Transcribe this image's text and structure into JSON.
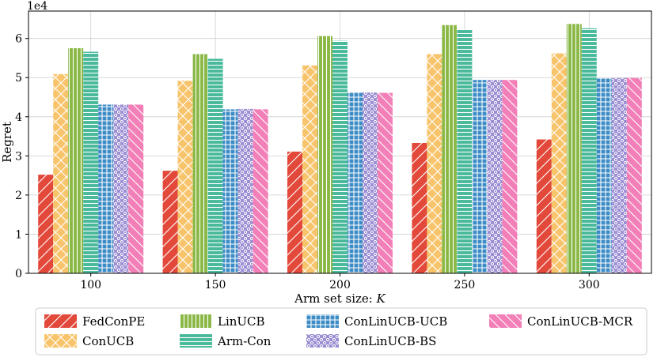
{
  "chart_data": {
    "type": "bar",
    "title": "",
    "xlabel": "Arm set size: ",
    "xlabel_var": "K",
    "ylabel": "Regret",
    "y_exponent_label": "1e4",
    "ylim": [
      0,
      6.7
    ],
    "yticks": [
      0,
      1,
      2,
      3,
      4,
      5,
      6
    ],
    "ytick_labels": [
      "0",
      "1",
      "2",
      "3",
      "4",
      "5",
      "6"
    ],
    "grid": true,
    "legend_position": "bottom",
    "categories": [
      "100",
      "150",
      "200",
      "250",
      "300"
    ],
    "series": [
      {
        "name": "FedConPE",
        "values": [
          2.52,
          2.62,
          3.11,
          3.33,
          3.42
        ],
        "color": "#e2493b",
        "pattern": "slash"
      },
      {
        "name": "ConUCB",
        "values": [
          5.09,
          4.92,
          5.31,
          5.6,
          5.62
        ],
        "color": "#f8c46b",
        "pattern": "cross"
      },
      {
        "name": "LinUCB",
        "values": [
          5.75,
          5.6,
          6.06,
          6.34,
          6.37
        ],
        "color": "#8ab846",
        "pattern": "vertical"
      },
      {
        "name": "Arm-Con",
        "values": [
          5.66,
          5.48,
          5.94,
          6.23,
          6.26
        ],
        "color": "#48b99a",
        "pattern": "horizontal"
      },
      {
        "name": "ConLinUCB-UCB",
        "values": [
          4.31,
          4.19,
          4.62,
          4.94,
          4.99
        ],
        "color": "#3e8cc6",
        "pattern": "grid"
      },
      {
        "name": "ConLinUCB-BS",
        "values": [
          4.31,
          4.2,
          4.62,
          4.94,
          4.99
        ],
        "color": "#9b8ed3",
        "pattern": "dots"
      },
      {
        "name": "ConLinUCB-MCR",
        "values": [
          4.31,
          4.19,
          4.61,
          4.94,
          4.99
        ],
        "color": "#f27fb7",
        "pattern": "backslash"
      }
    ]
  }
}
